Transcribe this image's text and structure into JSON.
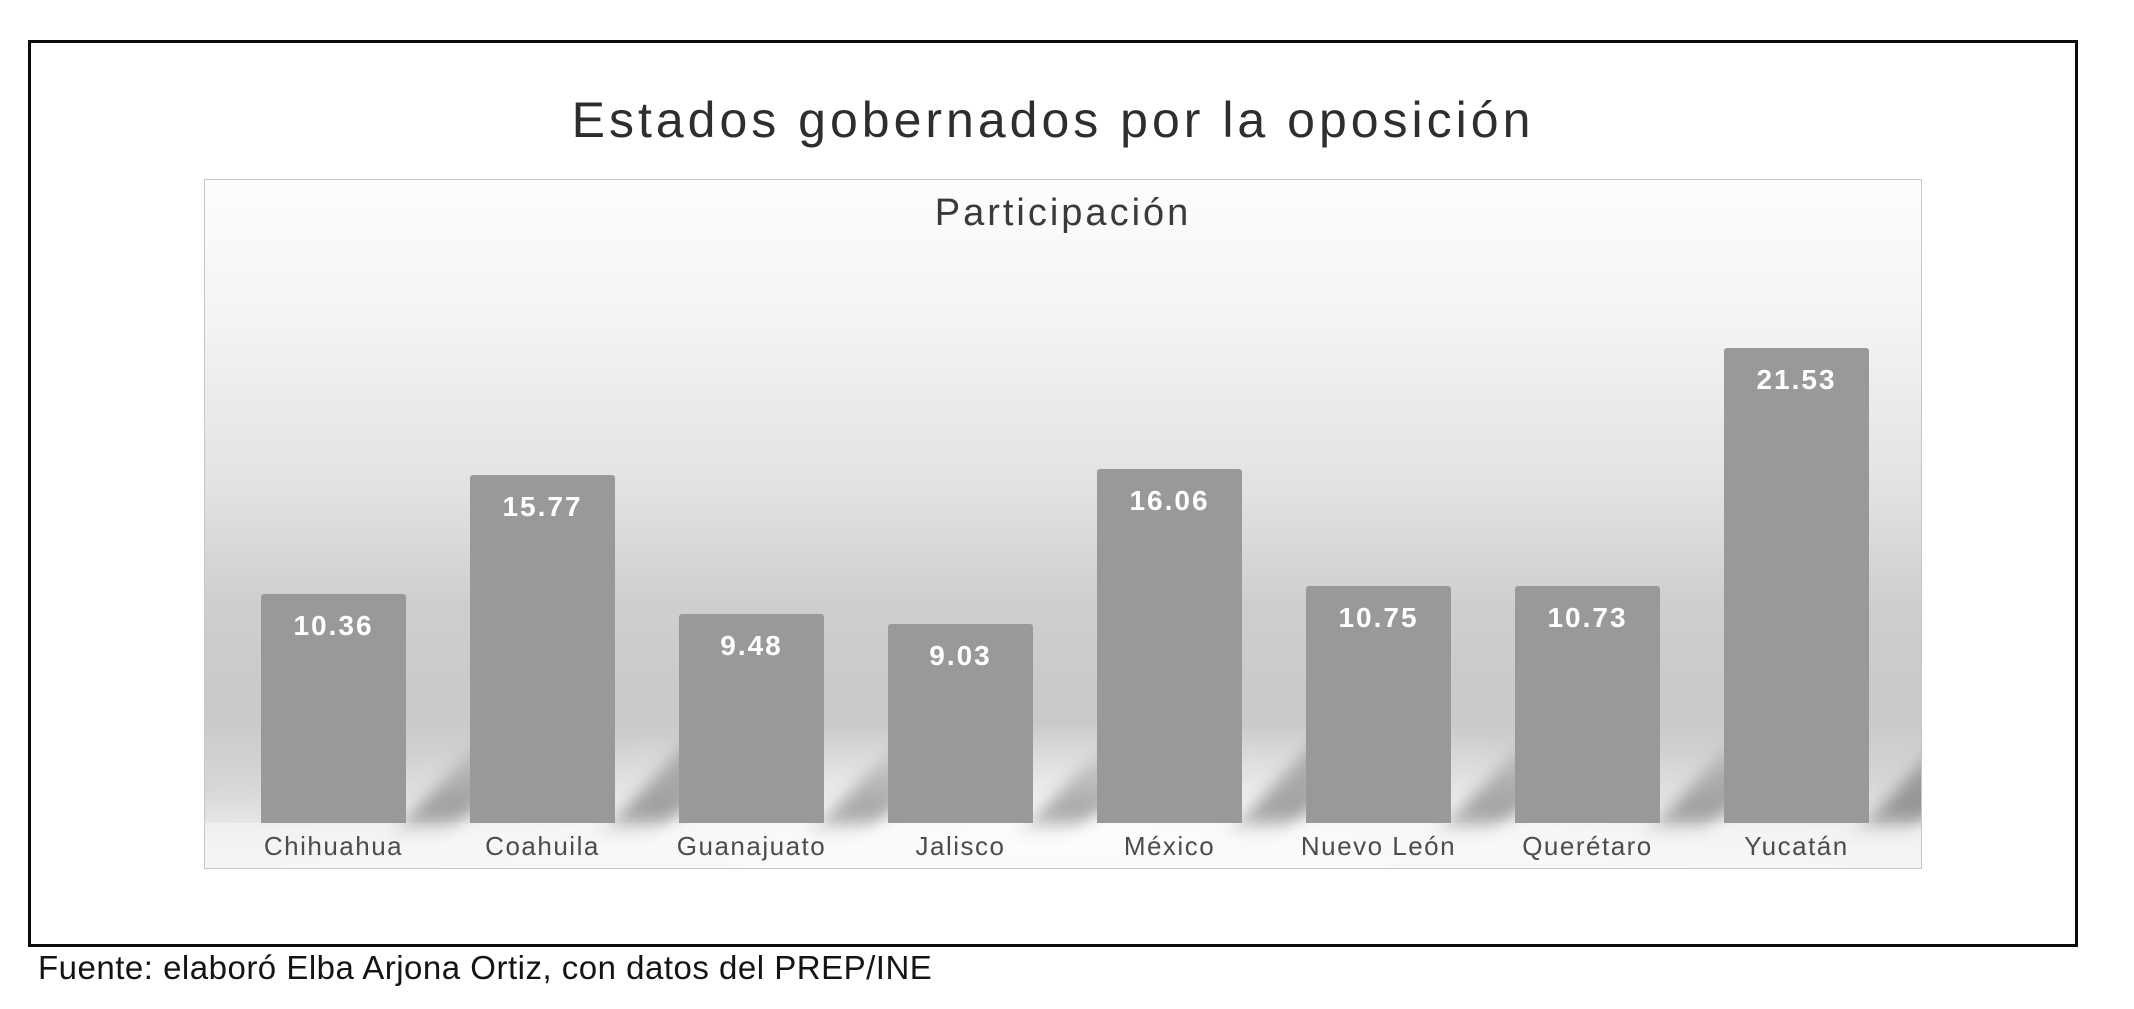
{
  "title": "Estados gobernados por la oposición",
  "source": "Fuente: elaboró Elba Arjona Ortiz, con datos del PREP/INE",
  "chart_data": {
    "type": "bar",
    "title": "Participación",
    "categories": [
      "Chihuahua",
      "Coahuila",
      "Guanajuato",
      "Jalisco",
      "México",
      "Nuevo León",
      "Querétaro",
      "Yucatán"
    ],
    "values": [
      10.36,
      15.77,
      9.48,
      9.03,
      16.06,
      10.75,
      10.73,
      21.53
    ],
    "value_labels": [
      "10.36",
      "15.77",
      "9.48",
      "9.03",
      "16.06",
      "10.75",
      "10.73",
      "21.53"
    ],
    "xlabel": "",
    "ylabel": "",
    "ylim": [
      0,
      29
    ],
    "grid": false,
    "legend": false,
    "axis_visible": false,
    "bar_color": "#999999",
    "value_label_color": "#ffffff",
    "category_label_color": "#4c4c4c",
    "background": "gradient-gray-backdrop"
  }
}
